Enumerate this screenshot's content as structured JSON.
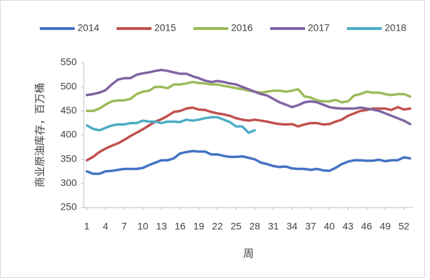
{
  "chart_data": {
    "type": "line",
    "x": [
      1,
      2,
      3,
      4,
      5,
      6,
      7,
      8,
      9,
      10,
      11,
      12,
      13,
      14,
      15,
      16,
      17,
      18,
      19,
      20,
      21,
      22,
      23,
      24,
      25,
      26,
      27,
      28,
      29,
      30,
      31,
      32,
      33,
      34,
      35,
      36,
      37,
      38,
      39,
      40,
      41,
      42,
      43,
      44,
      45,
      46,
      47,
      48,
      49,
      50,
      51,
      52,
      53
    ],
    "xlim": [
      0.5,
      53.5
    ],
    "xticks": [
      1,
      4,
      7,
      10,
      13,
      16,
      19,
      22,
      25,
      28,
      31,
      34,
      37,
      40,
      43,
      46,
      49,
      52
    ],
    "ylim": [
      250,
      550
    ],
    "yticks": [
      250,
      300,
      350,
      400,
      450,
      500,
      550
    ],
    "xlabel": "周",
    "ylabel": "商业原油库存，百万桶",
    "grid": false,
    "legend": "top",
    "series": [
      {
        "name": "2014",
        "color": "#4472c4",
        "values": [
          325,
          320,
          320,
          325,
          326,
          328,
          330,
          330,
          330,
          332,
          338,
          343,
          348,
          348,
          352,
          362,
          365,
          367,
          366,
          366,
          360,
          360,
          357,
          355,
          355,
          356,
          353,
          350,
          343,
          340,
          336,
          334,
          335,
          331,
          330,
          330,
          328,
          330,
          327,
          326,
          332,
          340,
          345,
          348,
          348,
          347,
          347,
          349,
          346,
          348,
          348,
          354,
          352
        ]
      },
      {
        "name": "2015",
        "color": "#c0504d",
        "values": [
          348,
          355,
          365,
          372,
          378,
          383,
          390,
          398,
          405,
          412,
          420,
          428,
          433,
          440,
          448,
          450,
          455,
          457,
          453,
          452,
          448,
          445,
          443,
          440,
          435,
          432,
          430,
          432,
          430,
          428,
          425,
          423,
          422,
          423,
          418,
          422,
          425,
          425,
          422,
          423,
          428,
          432,
          440,
          445,
          450,
          452,
          455,
          455,
          455,
          452,
          458,
          453,
          455
        ]
      },
      {
        "name": "2016",
        "color": "#9bbb59",
        "values": [
          450,
          450,
          455,
          463,
          470,
          472,
          472,
          475,
          485,
          490,
          492,
          500,
          500,
          497,
          505,
          505,
          507,
          510,
          508,
          507,
          505,
          505,
          502,
          500,
          497,
          495,
          492,
          490,
          488,
          490,
          492,
          492,
          490,
          492,
          495,
          480,
          478,
          472,
          470,
          470,
          473,
          468,
          470,
          482,
          485,
          490,
          488,
          488,
          485,
          483,
          485,
          485,
          480
        ]
      },
      {
        "name": "2017",
        "color": "#8064a2",
        "values": [
          483,
          485,
          488,
          493,
          505,
          515,
          518,
          518,
          525,
          528,
          530,
          533,
          535,
          533,
          530,
          527,
          527,
          522,
          518,
          513,
          510,
          512,
          510,
          507,
          505,
          500,
          495,
          490,
          485,
          482,
          475,
          468,
          463,
          458,
          462,
          468,
          470,
          468,
          463,
          458,
          456,
          455,
          455,
          455,
          457,
          455,
          453,
          450,
          445,
          440,
          435,
          430,
          423
        ]
      },
      {
        "name": "2018",
        "color": "#4bacc6",
        "values": [
          420,
          413,
          410,
          415,
          420,
          422,
          422,
          425,
          425,
          430,
          428,
          428,
          425,
          428,
          428,
          427,
          432,
          430,
          432,
          435,
          437,
          437,
          432,
          427,
          418,
          418,
          405,
          410,
          null,
          null,
          null,
          null,
          null,
          null,
          null,
          null,
          null,
          null,
          null,
          null,
          null,
          null,
          null,
          null,
          null,
          null,
          null,
          null,
          null,
          null,
          null,
          null,
          null
        ]
      }
    ]
  }
}
